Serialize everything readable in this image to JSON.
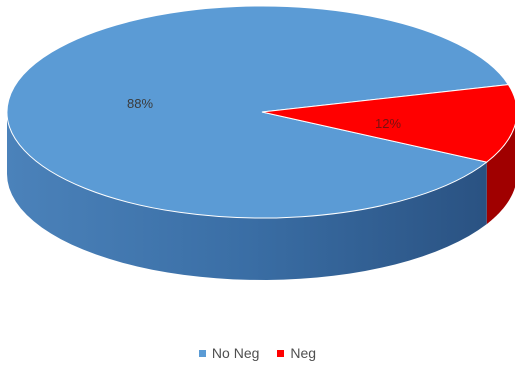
{
  "chart_data": {
    "type": "pie",
    "style": "3d-pie",
    "title": "",
    "slices": [
      {
        "label": "No Neg",
        "value": 88,
        "data_label": "88%",
        "color": "#5b9bd5",
        "side_color": "#3a6ea5"
      },
      {
        "label": "Neg",
        "value": 12,
        "data_label": "12%",
        "color": "#ff0000",
        "side_color": "#a00000"
      }
    ],
    "legend_position": "bottom"
  }
}
